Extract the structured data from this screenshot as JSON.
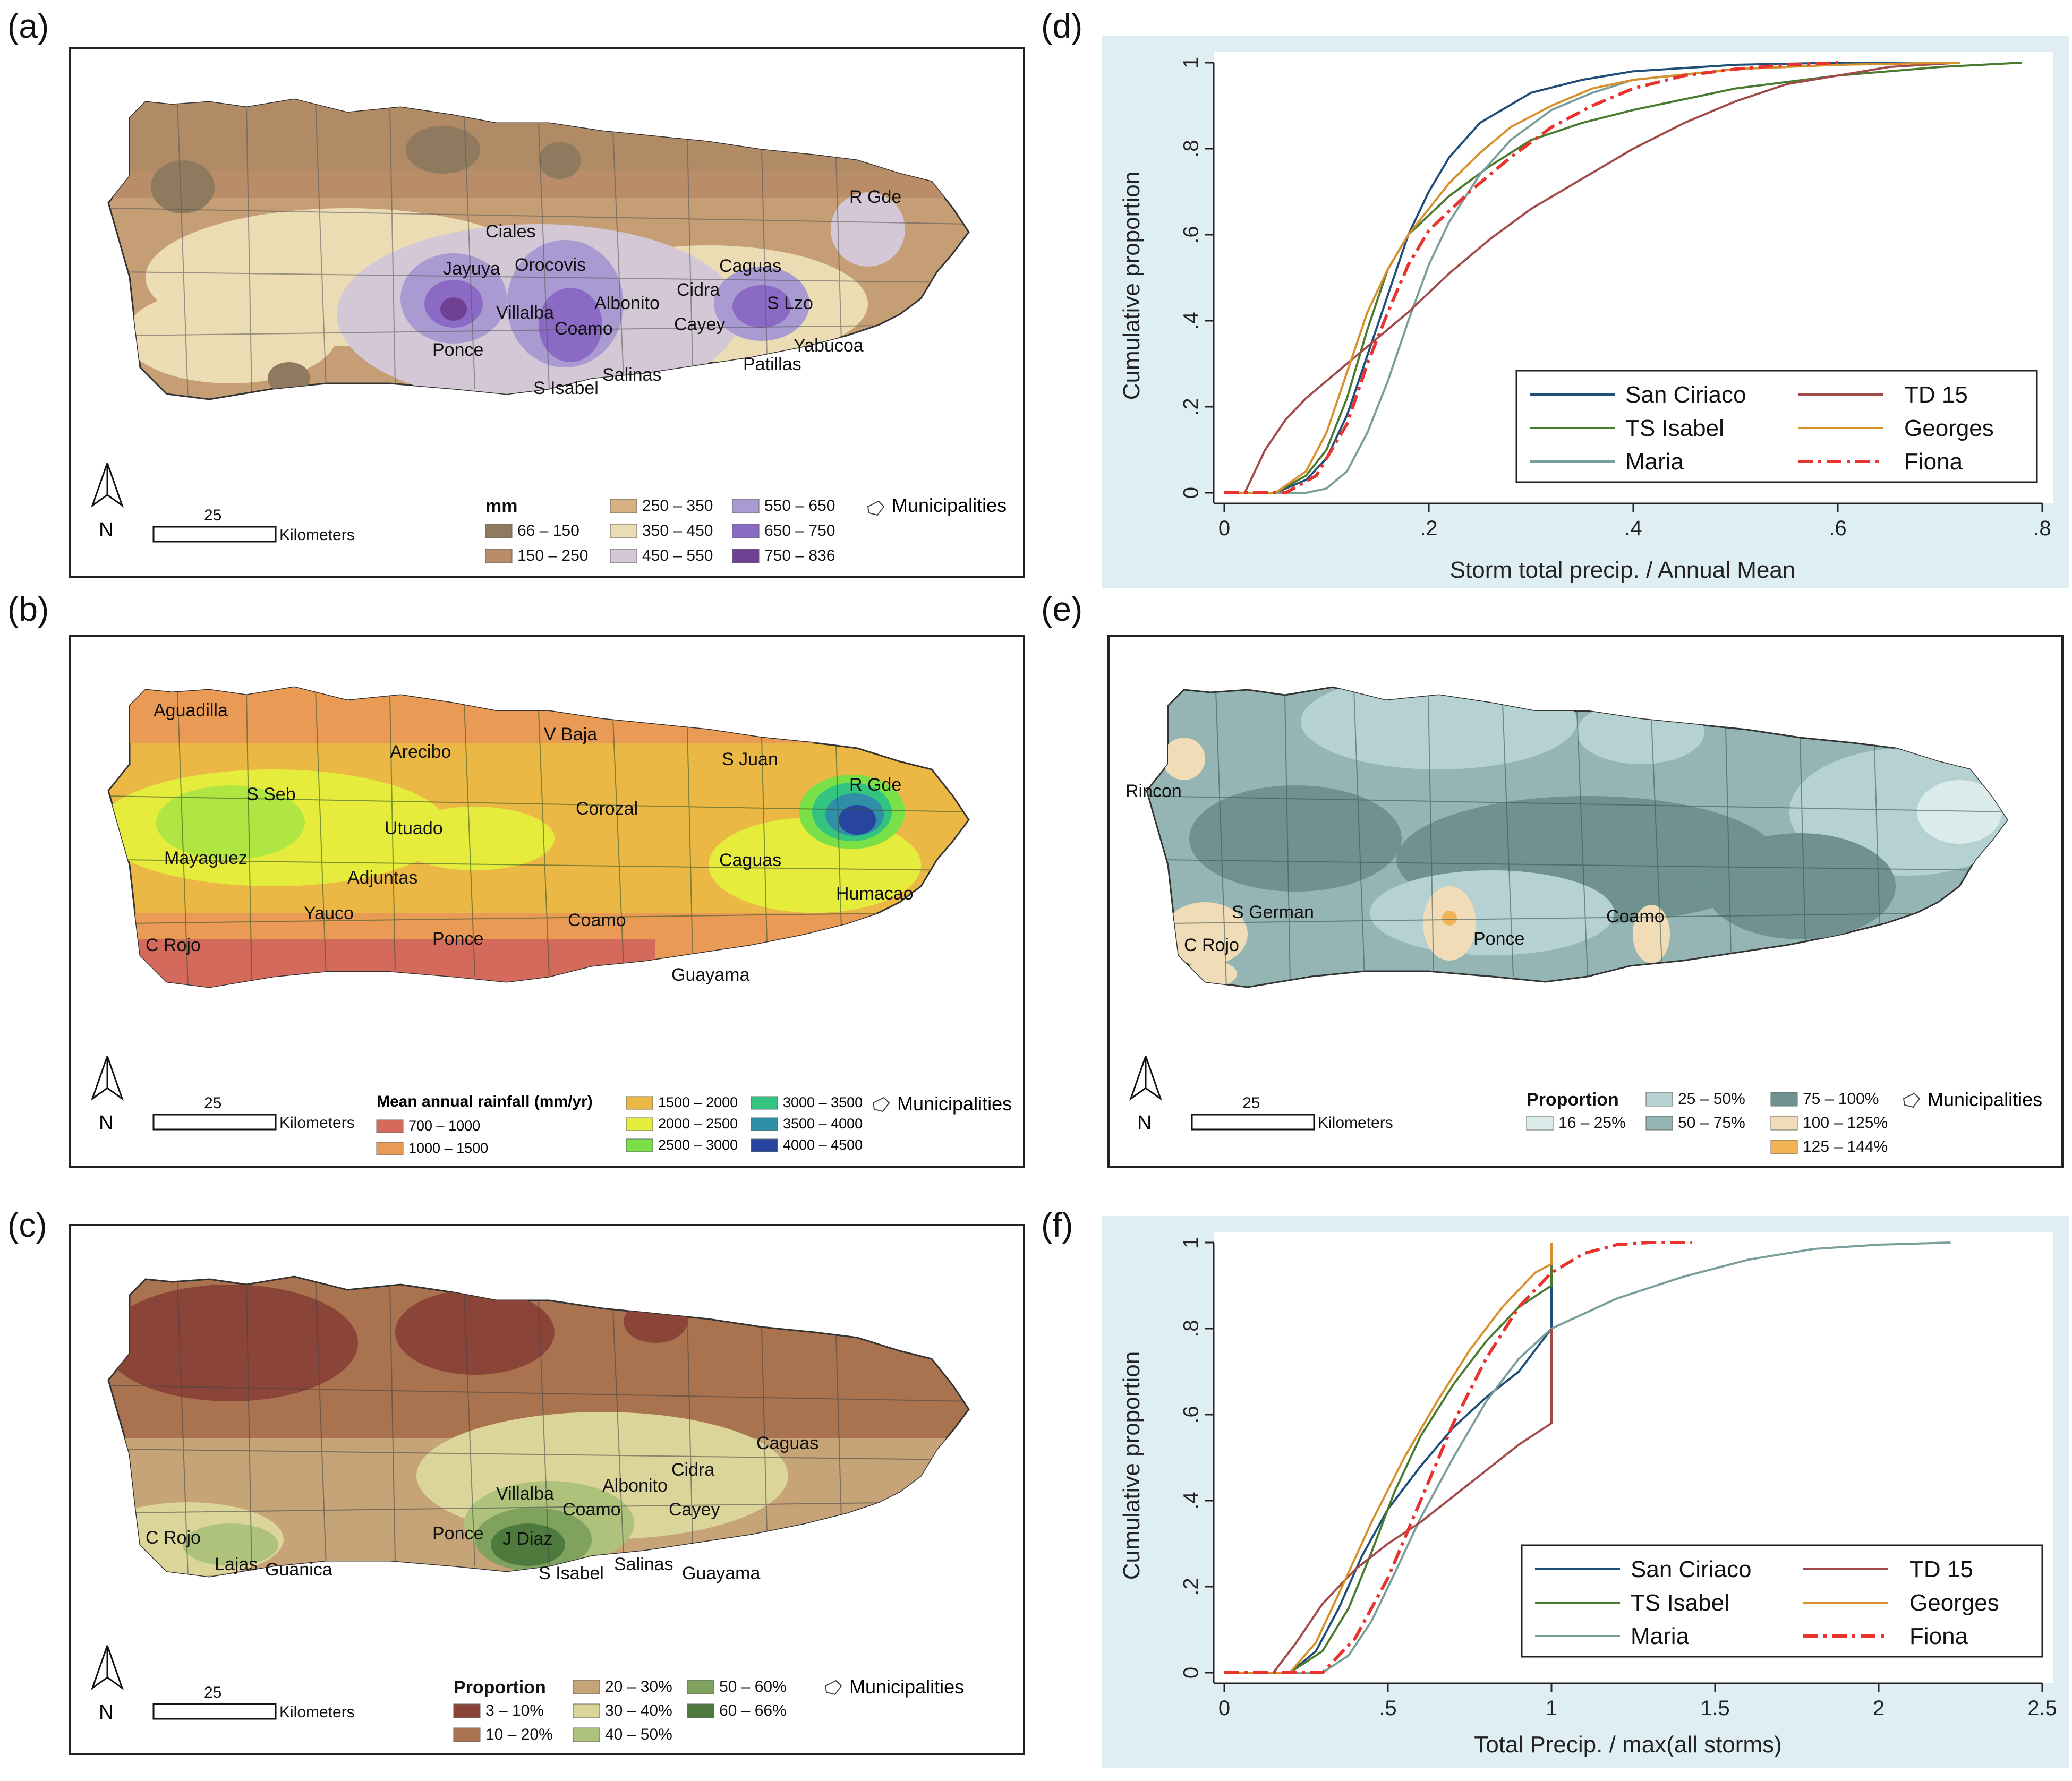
{
  "panels": {
    "a": {
      "label": "(a)",
      "places": [
        "Ciales",
        "Jayuya",
        "Orocovis",
        "Villalba",
        "Albonito",
        "Coamo",
        "Ponce",
        "S Isabel",
        "Salinas",
        "Cidra",
        "Cayey",
        "Caguas",
        "S Lzo",
        "Yabucoa",
        "Patillas",
        "R Gde"
      ],
      "scale_value": "25",
      "scale_unit": "Kilometers",
      "north": "N",
      "legend_title": "mm",
      "legend_items": [
        {
          "label": "66 – 150",
          "color": "#8f7a60"
        },
        {
          "label": "150 – 250",
          "color": "#b98d68"
        },
        {
          "label": "250 – 350",
          "color": "#d6b184"
        },
        {
          "label": "350 – 450",
          "color": "#ecdcb4"
        },
        {
          "label": "450 – 550",
          "color": "#d4c8d6"
        },
        {
          "label": "550 – 650",
          "color": "#a99ad2"
        },
        {
          "label": "650 – 750",
          "color": "#8a6ac4"
        },
        {
          "label": "750 – 836",
          "color": "#6f3f92"
        }
      ],
      "municipalities": "Municipalities"
    },
    "b": {
      "label": "(b)",
      "places": [
        "Aguadilla",
        "Arecibo",
        "V Baja",
        "S Juan",
        "R Gde",
        "S Seb",
        "Utuado",
        "Corozal",
        "Mayaguez",
        "Adjuntas",
        "Caguas",
        "Humacao",
        "Yauco",
        "Ponce",
        "Coamo",
        "C Rojo",
        "Guayama"
      ],
      "scale_value": "25",
      "scale_unit": "Kilometers",
      "north": "N",
      "legend_title": "Mean annual rainfall (mm/yr)",
      "legend_items": [
        {
          "label": "700 – 1000",
          "color": "#d46a5c"
        },
        {
          "label": "1000 – 1500",
          "color": "#e99a55"
        },
        {
          "label": "1500 – 2000",
          "color": "#ebb846"
        },
        {
          "label": "2000 – 2500",
          "color": "#e6ec3c"
        },
        {
          "label": "2500 – 3000",
          "color": "#7ae048"
        },
        {
          "label": "3000 – 3500",
          "color": "#33c47f"
        },
        {
          "label": "3500 – 4000",
          "color": "#2f8fa8"
        },
        {
          "label": "4000 – 4500",
          "color": "#27459e"
        }
      ],
      "municipalities": "Municipalities"
    },
    "c": {
      "label": "(c)",
      "places": [
        "Caguas",
        "Cidra",
        "Albonito",
        "Villalba",
        "Coamo",
        "Cayey",
        "Ponce",
        "J Diaz",
        "C Rojo",
        "Lajas",
        "Guanica",
        "S Isabel",
        "Salinas",
        "Guayama"
      ],
      "scale_value": "25",
      "scale_unit": "Kilometers",
      "north": "N",
      "legend_title": "Proportion",
      "legend_items": [
        {
          "label": "3 – 10%",
          "color": "#8a4438"
        },
        {
          "label": "10 – 20%",
          "color": "#a9734f"
        },
        {
          "label": "20 – 30%",
          "color": "#c7a477"
        },
        {
          "label": "30 – 40%",
          "color": "#dcd599"
        },
        {
          "label": "40 – 50%",
          "color": "#aec27c"
        },
        {
          "label": "50 – 60%",
          "color": "#7fa35e"
        },
        {
          "label": "60 – 66%",
          "color": "#4f7a3e"
        }
      ],
      "municipalities": "Municipalities"
    },
    "e": {
      "label": "(e)",
      "places": [
        "Rincon",
        "S German",
        "C Rojo",
        "Ponce",
        "Coamo"
      ],
      "scale_value": "25",
      "scale_unit": "Kilometers",
      "north": "N",
      "legend_title": "Proportion",
      "legend_items": [
        {
          "label": "16 – 25%",
          "color": "#dbebea"
        },
        {
          "label": "25 – 50%",
          "color": "#b6d1d1"
        },
        {
          "label": "50 – 75%",
          "color": "#95b4b4"
        },
        {
          "label": "75 – 100%",
          "color": "#6f9290"
        },
        {
          "label": "100 – 125%",
          "color": "#f1dcb8"
        },
        {
          "label": "125 – 144%",
          "color": "#f2b457"
        }
      ],
      "municipalities": "Municipalities"
    }
  },
  "chart_data": [
    {
      "panel_label": "(d)",
      "type": "line",
      "xlabel": "Storm total precip. / Annual Mean",
      "ylabel": "Cumulative proportion",
      "xlim": [
        0,
        0.8
      ],
      "ylim": [
        0,
        1
      ],
      "x_ticks": [
        0,
        0.2,
        0.4,
        0.6,
        0.8
      ],
      "x_tick_labels": [
        "0",
        ".2",
        ".4",
        ".6",
        ".8"
      ],
      "y_ticks": [
        0,
        0.2,
        0.4,
        0.6,
        0.8,
        1
      ],
      "y_tick_labels": [
        "0",
        ".2",
        ".4",
        ".6",
        ".8",
        "1"
      ],
      "series": [
        {
          "name": "San Ciriaco",
          "color": "#1f4e79",
          "dash": "",
          "points": [
            [
              0,
              0
            ],
            [
              0.05,
              0
            ],
            [
              0.08,
              0.03
            ],
            [
              0.1,
              0.08
            ],
            [
              0.12,
              0.18
            ],
            [
              0.14,
              0.32
            ],
            [
              0.16,
              0.46
            ],
            [
              0.18,
              0.6
            ],
            [
              0.2,
              0.7
            ],
            [
              0.22,
              0.78
            ],
            [
              0.25,
              0.86
            ],
            [
              0.3,
              0.93
            ],
            [
              0.35,
              0.96
            ],
            [
              0.4,
              0.98
            ],
            [
              0.5,
              0.995
            ],
            [
              0.6,
              1
            ],
            [
              0.72,
              1
            ]
          ]
        },
        {
          "name": "TS Isabel",
          "color": "#4a7a2f",
          "dash": "",
          "points": [
            [
              0,
              0
            ],
            [
              0.05,
              0
            ],
            [
              0.08,
              0.04
            ],
            [
              0.1,
              0.1
            ],
            [
              0.12,
              0.22
            ],
            [
              0.14,
              0.38
            ],
            [
              0.16,
              0.52
            ],
            [
              0.18,
              0.6
            ],
            [
              0.22,
              0.69
            ],
            [
              0.26,
              0.76
            ],
            [
              0.3,
              0.82
            ],
            [
              0.35,
              0.86
            ],
            [
              0.4,
              0.89
            ],
            [
              0.5,
              0.94
            ],
            [
              0.6,
              0.97
            ],
            [
              0.7,
              0.99
            ],
            [
              0.78,
              1
            ]
          ]
        },
        {
          "name": "Maria",
          "color": "#7a9e9c",
          "dash": "",
          "points": [
            [
              0,
              0
            ],
            [
              0.08,
              0
            ],
            [
              0.1,
              0.01
            ],
            [
              0.12,
              0.05
            ],
            [
              0.14,
              0.14
            ],
            [
              0.16,
              0.26
            ],
            [
              0.18,
              0.4
            ],
            [
              0.2,
              0.53
            ],
            [
              0.22,
              0.63
            ],
            [
              0.25,
              0.74
            ],
            [
              0.28,
              0.82
            ],
            [
              0.32,
              0.89
            ],
            [
              0.36,
              0.93
            ],
            [
              0.4,
              0.96
            ],
            [
              0.5,
              0.985
            ],
            [
              0.6,
              0.995
            ],
            [
              0.7,
              1
            ]
          ]
        },
        {
          "name": "TD 15",
          "color": "#a04a4a",
          "dash": "",
          "points": [
            [
              0,
              0
            ],
            [
              0.02,
              0
            ],
            [
              0.04,
              0.1
            ],
            [
              0.06,
              0.17
            ],
            [
              0.08,
              0.22
            ],
            [
              0.1,
              0.26
            ],
            [
              0.14,
              0.34
            ],
            [
              0.18,
              0.42
            ],
            [
              0.22,
              0.51
            ],
            [
              0.26,
              0.59
            ],
            [
              0.3,
              0.66
            ],
            [
              0.35,
              0.73
            ],
            [
              0.4,
              0.8
            ],
            [
              0.45,
              0.86
            ],
            [
              0.5,
              0.91
            ],
            [
              0.55,
              0.95
            ],
            [
              0.6,
              0.97
            ],
            [
              0.65,
              0.99
            ],
            [
              0.72,
              1
            ]
          ]
        },
        {
          "name": "Georges",
          "color": "#d8902a",
          "dash": "",
          "points": [
            [
              0,
              0
            ],
            [
              0.05,
              0
            ],
            [
              0.08,
              0.05
            ],
            [
              0.1,
              0.14
            ],
            [
              0.12,
              0.28
            ],
            [
              0.14,
              0.42
            ],
            [
              0.16,
              0.52
            ],
            [
              0.18,
              0.6
            ],
            [
              0.2,
              0.66
            ],
            [
              0.22,
              0.72
            ],
            [
              0.25,
              0.79
            ],
            [
              0.28,
              0.85
            ],
            [
              0.32,
              0.9
            ],
            [
              0.36,
              0.94
            ],
            [
              0.4,
              0.96
            ],
            [
              0.5,
              0.985
            ],
            [
              0.6,
              0.995
            ],
            [
              0.72,
              1
            ]
          ]
        },
        {
          "name": "Fiona",
          "color": "#e8332f",
          "dash": "28,10,6,10",
          "points": [
            [
              0,
              0
            ],
            [
              0.06,
              0
            ],
            [
              0.09,
              0.04
            ],
            [
              0.12,
              0.16
            ],
            [
              0.14,
              0.3
            ],
            [
              0.16,
              0.42
            ],
            [
              0.18,
              0.53
            ],
            [
              0.2,
              0.61
            ],
            [
              0.24,
              0.7
            ],
            [
              0.28,
              0.78
            ],
            [
              0.32,
              0.85
            ],
            [
              0.36,
              0.9
            ],
            [
              0.4,
              0.94
            ],
            [
              0.45,
              0.97
            ],
            [
              0.5,
              0.985
            ],
            [
              0.55,
              0.995
            ],
            [
              0.6,
              1
            ]
          ]
        }
      ]
    },
    {
      "panel_label": "(f)",
      "type": "line",
      "xlabel": "Total Precip. / max(all storms)",
      "ylabel": "Cumulative proportion",
      "xlim": [
        0,
        2.5
      ],
      "ylim": [
        0,
        1
      ],
      "x_ticks": [
        0,
        0.5,
        1,
        1.5,
        2,
        2.5
      ],
      "x_tick_labels": [
        "0",
        ".5",
        "1",
        "1.5",
        "2",
        "2.5"
      ],
      "y_ticks": [
        0,
        0.2,
        0.4,
        0.6,
        0.8,
        1
      ],
      "y_tick_labels": [
        "0",
        ".2",
        ".4",
        ".6",
        ".8",
        "1"
      ],
      "series": [
        {
          "name": "San Ciriaco",
          "color": "#1f4e79",
          "dash": "",
          "points": [
            [
              0,
              0
            ],
            [
              0.2,
              0
            ],
            [
              0.28,
              0.05
            ],
            [
              0.35,
              0.15
            ],
            [
              0.42,
              0.27
            ],
            [
              0.5,
              0.38
            ],
            [
              0.6,
              0.48
            ],
            [
              0.7,
              0.57
            ],
            [
              0.8,
              0.64
            ],
            [
              0.9,
              0.7
            ],
            [
              1,
              0.8
            ],
            [
              1,
              1
            ]
          ]
        },
        {
          "name": "TS Isabel",
          "color": "#4a7a2f",
          "dash": "",
          "points": [
            [
              0,
              0
            ],
            [
              0.2,
              0
            ],
            [
              0.3,
              0.05
            ],
            [
              0.38,
              0.15
            ],
            [
              0.45,
              0.28
            ],
            [
              0.52,
              0.42
            ],
            [
              0.6,
              0.55
            ],
            [
              0.7,
              0.67
            ],
            [
              0.8,
              0.77
            ],
            [
              0.9,
              0.85
            ],
            [
              1,
              0.9
            ],
            [
              1,
              1
            ]
          ]
        },
        {
          "name": "Maria",
          "color": "#7a9e9c",
          "dash": "",
          "points": [
            [
              0,
              0
            ],
            [
              0.3,
              0
            ],
            [
              0.38,
              0.04
            ],
            [
              0.45,
              0.12
            ],
            [
              0.52,
              0.23
            ],
            [
              0.6,
              0.36
            ],
            [
              0.7,
              0.5
            ],
            [
              0.8,
              0.63
            ],
            [
              0.9,
              0.73
            ],
            [
              1,
              0.8
            ],
            [
              1.2,
              0.87
            ],
            [
              1.4,
              0.92
            ],
            [
              1.6,
              0.96
            ],
            [
              1.8,
              0.985
            ],
            [
              2,
              0.995
            ],
            [
              2.22,
              1
            ]
          ]
        },
        {
          "name": "TD 15",
          "color": "#a04a4a",
          "dash": "",
          "points": [
            [
              0,
              0
            ],
            [
              0.15,
              0
            ],
            [
              0.22,
              0.07
            ],
            [
              0.3,
              0.16
            ],
            [
              0.4,
              0.24
            ],
            [
              0.5,
              0.3
            ],
            [
              0.6,
              0.35
            ],
            [
              0.7,
              0.41
            ],
            [
              0.8,
              0.47
            ],
            [
              0.9,
              0.53
            ],
            [
              1,
              0.58
            ],
            [
              1,
              0.8
            ]
          ]
        },
        {
          "name": "Georges",
          "color": "#d8902a",
          "dash": "",
          "points": [
            [
              0,
              0
            ],
            [
              0.2,
              0
            ],
            [
              0.28,
              0.07
            ],
            [
              0.36,
              0.2
            ],
            [
              0.45,
              0.35
            ],
            [
              0.55,
              0.5
            ],
            [
              0.65,
              0.63
            ],
            [
              0.75,
              0.75
            ],
            [
              0.85,
              0.85
            ],
            [
              0.95,
              0.93
            ],
            [
              1,
              0.95
            ],
            [
              1,
              1
            ]
          ]
        },
        {
          "name": "Fiona",
          "color": "#e8332f",
          "dash": "28,10,6,10",
          "points": [
            [
              0,
              0
            ],
            [
              0.3,
              0
            ],
            [
              0.4,
              0.08
            ],
            [
              0.5,
              0.22
            ],
            [
              0.6,
              0.4
            ],
            [
              0.7,
              0.58
            ],
            [
              0.8,
              0.73
            ],
            [
              0.9,
              0.85
            ],
            [
              1,
              0.93
            ],
            [
              1.1,
              0.975
            ],
            [
              1.2,
              0.995
            ],
            [
              1.3,
              1
            ],
            [
              1.43,
              1
            ]
          ]
        }
      ]
    }
  ]
}
